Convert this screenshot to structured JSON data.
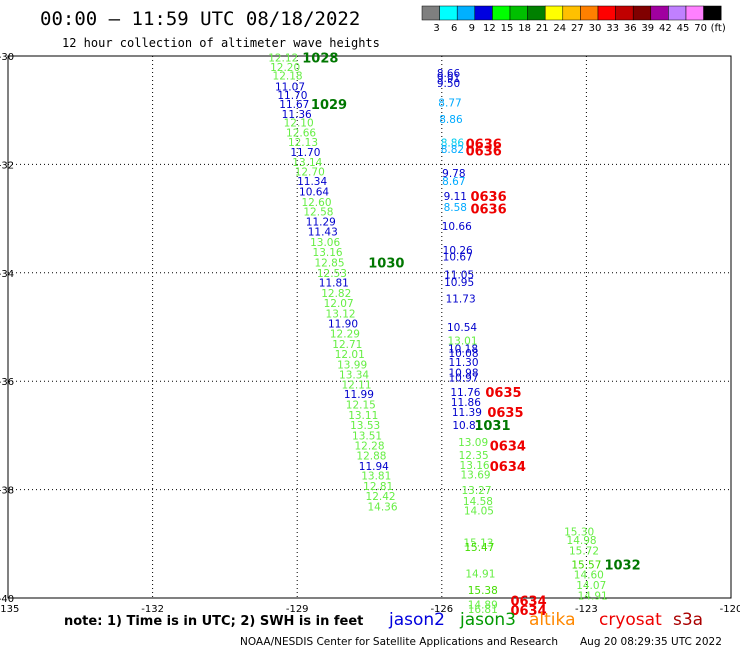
{
  "header": {
    "title": "00:00 – 11:59 UTC 08/18/2022",
    "subtitle": "12 hour collection of altimeter wave heights"
  },
  "color_scale": {
    "colors": [
      "#7f7f7f",
      "#00ffff",
      "#00b0ff",
      "#0000e0",
      "#00ff00",
      "#00c000",
      "#008000",
      "#ffff00",
      "#ffc000",
      "#ff8000",
      "#ff0000",
      "#c00000",
      "#800000",
      "#a000a0",
      "#c080ff",
      "#ff80ff",
      "#000000"
    ],
    "labels": [
      "3",
      "6",
      "9",
      "12",
      "15",
      "18",
      "21",
      "24",
      "27",
      "30",
      "33",
      "36",
      "39",
      "42",
      "45",
      "70",
      "(ft)"
    ]
  },
  "note": {
    "text": "note:  1) Time is in UTC;  2) SWH is in feet",
    "satellites": [
      {
        "name": "jason2",
        "color": "#0000dd"
      },
      {
        "name": "jason3",
        "color": "#009900"
      },
      {
        "name": "altika",
        "color": "#ff8800"
      },
      {
        "name": "cryosat",
        "color": "#ee0000"
      },
      {
        "name": "s3a",
        "color": "#aa0000"
      }
    ]
  },
  "footer": {
    "left": "NOAA/NESDIS Center for Satellite Applications and Research",
    "right": "Aug 20 08:29:35 UTC 2022"
  },
  "chart_data": {
    "type": "scatter",
    "xlim": [
      -135,
      -120
    ],
    "ylim": [
      -40,
      -30
    ],
    "xticks": [
      -135,
      -132,
      -129,
      -126,
      -123,
      -120
    ],
    "yticks": [
      -30,
      -32,
      -34,
      -36,
      -38,
      -40
    ],
    "xtick_labels": [
      "-135",
      "-132",
      "-129",
      "-126",
      "-123",
      "-120"
    ],
    "ytick_labels": [
      "-30",
      "-32",
      "-34",
      "-36",
      "-38",
      "-40"
    ],
    "grid": true,
    "colors": {
      "c6": "#00ccee",
      "c9": "#00aaff",
      "c12": "#0000cc",
      "c15": "#66ee44",
      "c18": "#44dd00",
      "time_green": "#007700",
      "time_red": "#ee0000"
    },
    "points": [
      {
        "x": -129.29,
        "y": -30.03,
        "v": "12.12",
        "c": "c15"
      },
      {
        "x": -129.25,
        "y": -30.2,
        "v": "12.20",
        "c": "c15"
      },
      {
        "x": -129.2,
        "y": -30.36,
        "v": "12.18",
        "c": "c15"
      },
      {
        "x": -129.15,
        "y": -30.56,
        "v": "11.07",
        "c": "c12"
      },
      {
        "x": -129.1,
        "y": -30.72,
        "v": "11.70",
        "c": "c12"
      },
      {
        "x": -129.06,
        "y": -30.89,
        "v": "11.67",
        "c": "c12"
      },
      {
        "x": -129.01,
        "y": -31.07,
        "v": "11.36",
        "c": "c12"
      },
      {
        "x": -128.97,
        "y": -31.23,
        "v": "12.10",
        "c": "c15"
      },
      {
        "x": -128.92,
        "y": -31.41,
        "v": "12.66",
        "c": "c15"
      },
      {
        "x": -128.88,
        "y": -31.59,
        "v": "12.13",
        "c": "c15"
      },
      {
        "x": -128.83,
        "y": -31.77,
        "v": "11.70",
        "c": "c12"
      },
      {
        "x": -128.79,
        "y": -31.96,
        "v": "13.14",
        "c": "c15"
      },
      {
        "x": -128.74,
        "y": -32.13,
        "v": "12.70",
        "c": "c15"
      },
      {
        "x": -128.69,
        "y": -32.31,
        "v": "11.34",
        "c": "c12"
      },
      {
        "x": -128.65,
        "y": -32.5,
        "v": "10.64",
        "c": "c12"
      },
      {
        "x": -128.6,
        "y": -32.69,
        "v": "12.60",
        "c": "c15"
      },
      {
        "x": -128.56,
        "y": -32.87,
        "v": "12.58",
        "c": "c15"
      },
      {
        "x": -128.51,
        "y": -33.05,
        "v": "11.29",
        "c": "c12"
      },
      {
        "x": -128.47,
        "y": -33.24,
        "v": "11.43",
        "c": "c12"
      },
      {
        "x": -128.42,
        "y": -33.43,
        "v": "13.06",
        "c": "c15"
      },
      {
        "x": -128.37,
        "y": -33.62,
        "v": "13.16",
        "c": "c15"
      },
      {
        "x": -128.33,
        "y": -33.81,
        "v": "12.85",
        "c": "c15"
      },
      {
        "x": -128.28,
        "y": -34.0,
        "v": "12.53",
        "c": "c15"
      },
      {
        "x": -128.24,
        "y": -34.18,
        "v": "11.81",
        "c": "c12"
      },
      {
        "x": -128.19,
        "y": -34.37,
        "v": "12.82",
        "c": "c15"
      },
      {
        "x": -128.14,
        "y": -34.56,
        "v": "12.07",
        "c": "c15"
      },
      {
        "x": -128.1,
        "y": -34.75,
        "v": "13.12",
        "c": "c15"
      },
      {
        "x": -128.05,
        "y": -34.94,
        "v": "11.90",
        "c": "c12"
      },
      {
        "x": -128.01,
        "y": -35.12,
        "v": "12.29",
        "c": "c15"
      },
      {
        "x": -127.96,
        "y": -35.31,
        "v": "12.71",
        "c": "c15"
      },
      {
        "x": -127.91,
        "y": -35.5,
        "v": "12.01",
        "c": "c15"
      },
      {
        "x": -127.86,
        "y": -35.69,
        "v": "13.99",
        "c": "c15"
      },
      {
        "x": -127.82,
        "y": -35.88,
        "v": "13.34",
        "c": "c15"
      },
      {
        "x": -127.77,
        "y": -36.06,
        "v": "12.11",
        "c": "c15"
      },
      {
        "x": -127.72,
        "y": -36.24,
        "v": "11.99",
        "c": "c12"
      },
      {
        "x": -127.68,
        "y": -36.43,
        "v": "12.15",
        "c": "c15"
      },
      {
        "x": -127.63,
        "y": -36.62,
        "v": "13.11",
        "c": "c15"
      },
      {
        "x": -127.59,
        "y": -36.81,
        "v": "13.53",
        "c": "c15"
      },
      {
        "x": -127.55,
        "y": -37.0,
        "v": "13.51",
        "c": "c15"
      },
      {
        "x": -127.5,
        "y": -37.19,
        "v": "12.28",
        "c": "c15"
      },
      {
        "x": -127.46,
        "y": -37.37,
        "v": "12.88",
        "c": "c15"
      },
      {
        "x": -127.41,
        "y": -37.56,
        "v": "11.94",
        "c": "c12"
      },
      {
        "x": -127.36,
        "y": -37.74,
        "v": "13.81",
        "c": "c15"
      },
      {
        "x": -127.32,
        "y": -37.93,
        "v": "12.81",
        "c": "c15"
      },
      {
        "x": -127.27,
        "y": -38.12,
        "v": "12.42",
        "c": "c15"
      },
      {
        "x": -127.23,
        "y": -38.31,
        "v": "14.36",
        "c": "c15"
      },
      {
        "x": -125.86,
        "y": -30.31,
        "v": "8.66",
        "c": "c12"
      },
      {
        "x": -125.86,
        "y": -30.41,
        "v": "9.91",
        "c": "c12"
      },
      {
        "x": -125.86,
        "y": -30.5,
        "v": "9.50",
        "c": "c12"
      },
      {
        "x": -125.83,
        "y": -30.86,
        "v": "8.77",
        "c": "c9"
      },
      {
        "x": -125.81,
        "y": -31.16,
        "v": "8.86",
        "c": "c9"
      },
      {
        "x": -125.78,
        "y": -31.6,
        "v": "8.86",
        "c": "c6"
      },
      {
        "x": -125.78,
        "y": -31.72,
        "v": "8.82",
        "c": "c9"
      },
      {
        "x": -125.75,
        "y": -32.16,
        "v": "9.78",
        "c": "c12"
      },
      {
        "x": -125.75,
        "y": -32.31,
        "v": "8.67",
        "c": "c9"
      },
      {
        "x": -125.72,
        "y": -32.58,
        "v": "9.11",
        "c": "c12"
      },
      {
        "x": -125.72,
        "y": -32.79,
        "v": "8.58",
        "c": "c9"
      },
      {
        "x": -125.69,
        "y": -33.14,
        "v": "10.66",
        "c": "c12"
      },
      {
        "x": -125.67,
        "y": -33.58,
        "v": "10.26",
        "c": "c12"
      },
      {
        "x": -125.67,
        "y": -33.7,
        "v": "10.67",
        "c": "c12"
      },
      {
        "x": -125.64,
        "y": -34.03,
        "v": "11.05",
        "c": "c12"
      },
      {
        "x": -125.64,
        "y": -34.17,
        "v": "10.95",
        "c": "c12"
      },
      {
        "x": -125.61,
        "y": -34.47,
        "v": "11.73",
        "c": "c12"
      },
      {
        "x": -125.58,
        "y": -35.0,
        "v": "10.54",
        "c": "c12"
      },
      {
        "x": -125.57,
        "y": -35.25,
        "v": "13.01",
        "c": "c15"
      },
      {
        "x": -125.56,
        "y": -35.4,
        "v": "10.18",
        "c": "c12"
      },
      {
        "x": -125.55,
        "y": -35.48,
        "v": "10.08",
        "c": "c12"
      },
      {
        "x": -125.55,
        "y": -35.65,
        "v": "11.30",
        "c": "c12"
      },
      {
        "x": -125.55,
        "y": -35.84,
        "v": "10.98",
        "c": "c12"
      },
      {
        "x": -125.55,
        "y": -35.93,
        "v": "10.97",
        "c": "c12"
      },
      {
        "x": -125.51,
        "y": -36.2,
        "v": "11.76",
        "c": "c12"
      },
      {
        "x": -125.5,
        "y": -36.38,
        "v": "11.86",
        "c": "c12"
      },
      {
        "x": -125.48,
        "y": -36.57,
        "v": "11.39",
        "c": "c12"
      },
      {
        "x": -125.47,
        "y": -36.81,
        "v": "10.81",
        "c": "c12"
      },
      {
        "x": -125.35,
        "y": -37.12,
        "v": "13.09",
        "c": "c15"
      },
      {
        "x": -125.34,
        "y": -37.36,
        "v": "12.35",
        "c": "c15"
      },
      {
        "x": -125.32,
        "y": -37.55,
        "v": "13.16",
        "c": "c15"
      },
      {
        "x": -125.3,
        "y": -37.72,
        "v": "13.69",
        "c": "c15"
      },
      {
        "x": -125.28,
        "y": -38.01,
        "v": "13.27",
        "c": "c15"
      },
      {
        "x": -125.25,
        "y": -38.21,
        "v": "14.58",
        "c": "c15"
      },
      {
        "x": -125.23,
        "y": -38.39,
        "v": "14.05",
        "c": "c15"
      },
      {
        "x": -125.24,
        "y": -38.98,
        "v": "15.13",
        "c": "c15"
      },
      {
        "x": -125.22,
        "y": -39.06,
        "v": "15.47",
        "c": "c18"
      },
      {
        "x": -125.2,
        "y": -39.55,
        "v": "14.91",
        "c": "c15"
      },
      {
        "x": -125.15,
        "y": -39.85,
        "v": "15.38",
        "c": "c18"
      },
      {
        "x": -125.15,
        "y": -40.12,
        "v": "14.89",
        "c": "c15"
      },
      {
        "x": -125.15,
        "y": -40.2,
        "v": "16.81",
        "c": "c15"
      },
      {
        "x": -123.15,
        "y": -38.77,
        "v": "15.30",
        "c": "c15"
      },
      {
        "x": -123.1,
        "y": -38.93,
        "v": "14.98",
        "c": "c15"
      },
      {
        "x": -123.05,
        "y": -39.12,
        "v": "15.72",
        "c": "c15"
      },
      {
        "x": -123.0,
        "y": -39.38,
        "v": "15.57",
        "c": "c18"
      },
      {
        "x": -122.95,
        "y": -39.57,
        "v": "14.60",
        "c": "c15"
      },
      {
        "x": -122.9,
        "y": -39.76,
        "v": "14.07",
        "c": "c15"
      },
      {
        "x": -122.87,
        "y": -39.95,
        "v": "14.91",
        "c": "c15"
      }
    ],
    "time_labels": [
      {
        "x": -128.52,
        "y": -30.03,
        "t": "1028",
        "c": "time_green"
      },
      {
        "x": -128.34,
        "y": -30.89,
        "t": "1029",
        "c": "time_green"
      },
      {
        "x": -127.15,
        "y": -33.81,
        "t": "1030",
        "c": "time_green"
      },
      {
        "x": -124.95,
        "y": -36.81,
        "t": "1031",
        "c": "time_green"
      },
      {
        "x": -122.25,
        "y": -39.38,
        "t": "1032",
        "c": "time_green"
      },
      {
        "x": -125.13,
        "y": -31.61,
        "t": "0636",
        "c": "time_red"
      },
      {
        "x": -125.13,
        "y": -31.74,
        "t": "0636",
        "c": "time_red"
      },
      {
        "x": -125.03,
        "y": -32.58,
        "t": "0636",
        "c": "time_red"
      },
      {
        "x": -125.03,
        "y": -32.81,
        "t": "0636",
        "c": "time_red"
      },
      {
        "x": -124.72,
        "y": -36.2,
        "t": "0635",
        "c": "time_red"
      },
      {
        "x": -124.68,
        "y": -36.57,
        "t": "0635",
        "c": "time_red"
      },
      {
        "x": -124.63,
        "y": -37.19,
        "t": "0634",
        "c": "time_red"
      },
      {
        "x": -124.63,
        "y": -37.56,
        "t": "0634",
        "c": "time_red"
      },
      {
        "x": -124.2,
        "y": -40.05,
        "t": "0634",
        "c": "time_red"
      },
      {
        "x": -124.2,
        "y": -40.22,
        "t": "0634",
        "c": "time_red"
      }
    ]
  }
}
